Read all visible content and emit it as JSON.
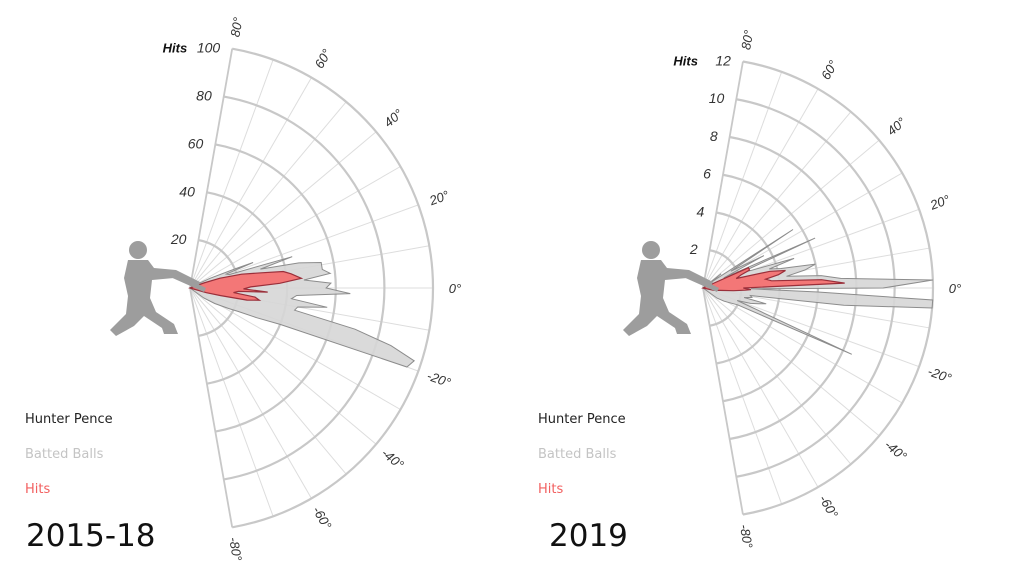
{
  "colors": {
    "grid": "#c8c8c8",
    "spoke": "#dddddd",
    "batted_fill": "#d6d6d6",
    "batted_stroke": "#8c8c8c",
    "hits_fill": "#f47272",
    "hits_stroke": "#9a2f3a",
    "silhouette": "#9d9d9d",
    "text": "#333333"
  },
  "chart_data": [
    {
      "type": "polar-area",
      "subtitle": "2015-18",
      "radial_axis_title": "Hits",
      "rlim": [
        0,
        100
      ],
      "r_ticks": [
        "20",
        "40",
        "60",
        "80",
        "100"
      ],
      "angle_range_deg": [
        -80,
        80
      ],
      "angle_ticks": [
        "80°",
        "60°",
        "40°",
        "20°",
        "0°",
        "-20°",
        "-40°",
        "-60°",
        "-80°"
      ],
      "legend": [
        "Hunter Pence",
        "Batted Balls",
        "Hits"
      ],
      "series": [
        {
          "name": "Batted Balls",
          "points": [
            [
              28,
              3
            ],
            [
              26,
              9
            ],
            [
              23,
              20
            ],
            [
              22,
              28
            ],
            [
              21,
              16
            ],
            [
              19,
              17
            ],
            [
              17,
              44
            ],
            [
              15,
              30
            ],
            [
              13,
              46
            ],
            [
              11,
              55
            ],
            [
              8,
              55
            ],
            [
              6,
              58
            ],
            [
              4,
              47
            ],
            [
              2,
              58
            ],
            [
              0,
              56
            ],
            [
              -2,
              66
            ],
            [
              -4,
              44
            ],
            [
              -6,
              42
            ],
            [
              -8,
              57
            ],
            [
              -10,
              45
            ],
            [
              -12,
              44
            ],
            [
              -14,
              70
            ],
            [
              -16,
              86
            ],
            [
              -18,
              97
            ],
            [
              -20,
              95
            ],
            [
              -22,
              40
            ],
            [
              -24,
              30
            ],
            [
              -26,
              22
            ],
            [
              -28,
              18
            ],
            [
              -32,
              12
            ],
            [
              -36,
              7
            ]
          ]
        },
        {
          "name": "Hits",
          "points": [
            [
              20,
              6
            ],
            [
              18,
              13
            ],
            [
              15,
              22
            ],
            [
              12,
              30
            ],
            [
              10,
              39
            ],
            [
              8,
              42
            ],
            [
              5,
              46
            ],
            [
              3,
              37
            ],
            [
              1,
              25
            ],
            [
              -1,
              22
            ],
            [
              -3,
              32
            ],
            [
              -4,
              20
            ],
            [
              -6,
              18
            ],
            [
              -8,
              27
            ],
            [
              -10,
              29
            ],
            [
              -12,
              24
            ],
            [
              -14,
              13
            ],
            [
              -16,
              7
            ]
          ]
        }
      ]
    },
    {
      "type": "polar-area",
      "subtitle": "2019",
      "radial_axis_title": "Hits",
      "rlim": [
        0,
        12
      ],
      "r_ticks": [
        "2",
        "4",
        "6",
        "8",
        "10",
        "12"
      ],
      "angle_range_deg": [
        -80,
        80
      ],
      "angle_ticks": [
        "80°",
        "60°",
        "40°",
        "20°",
        "0°",
        "-20°",
        "-40°",
        "-60°",
        "-80°"
      ],
      "legend": [
        "Hunter Pence",
        "Batted Balls",
        "Hits"
      ],
      "series": [
        {
          "name": "Batted Balls",
          "points": [
            [
              38,
              1.2
            ],
            [
              36,
              0.5
            ],
            [
              33,
              5.6
            ],
            [
              31,
              1.7
            ],
            [
              28,
              3.6
            ],
            [
              26,
              1.2
            ],
            [
              24,
              6.4
            ],
            [
              22,
              2.1
            ],
            [
              20,
              2.7
            ],
            [
              18,
              5
            ],
            [
              16,
              3.6
            ],
            [
              14,
              4.2
            ],
            [
              12,
              6
            ],
            [
              10,
              5.4
            ],
            [
              8,
              4.4
            ],
            [
              6,
              6.2
            ],
            [
              4,
              7.2
            ],
            [
              2,
              12
            ],
            [
              0,
              9.4
            ],
            [
              -1,
              2.5
            ],
            [
              -2,
              6
            ],
            [
              -3,
              12
            ],
            [
              -5,
              12
            ],
            [
              -7,
              7.4
            ],
            [
              -9,
              2.5
            ],
            [
              -11,
              2.6
            ],
            [
              -13,
              2.2
            ],
            [
              -14,
              3.4
            ],
            [
              -16,
              3
            ],
            [
              -18,
              2.6
            ],
            [
              -20,
              1.9
            ],
            [
              -24,
              8.5
            ],
            [
              -26,
              2
            ],
            [
              -28,
              1.7
            ],
            [
              -32,
              1.3
            ],
            [
              -36,
              0.9
            ]
          ]
        },
        {
          "name": "Hits",
          "points": [
            [
              24,
              2.6
            ],
            [
              21,
              2.6
            ],
            [
              19,
              2.1
            ],
            [
              16,
              1.8
            ],
            [
              14,
              3.6
            ],
            [
              12,
              4.4
            ],
            [
              10,
              4
            ],
            [
              8,
              3.3
            ],
            [
              6,
              3.6
            ],
            [
              4,
              6.2
            ],
            [
              2,
              7.4
            ],
            [
              0,
              2.1
            ],
            [
              -2,
              2.5
            ],
            [
              -3,
              2.2
            ],
            [
              -5,
              1.6
            ],
            [
              -8,
              0.9
            ],
            [
              -12,
              0.6
            ]
          ]
        }
      ]
    }
  ]
}
